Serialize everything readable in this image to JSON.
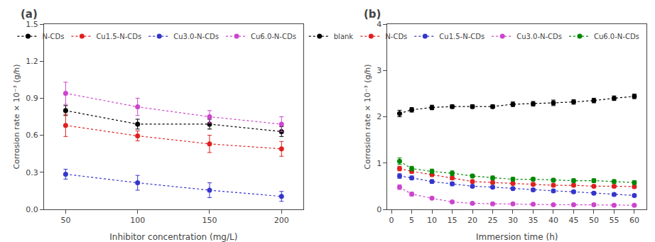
{
  "chart_data": [
    {
      "type": "line",
      "title": "(a)",
      "x": [
        50,
        100,
        150,
        200
      ],
      "series": [
        {
          "name": "N-CDs",
          "color": "#000000",
          "values": [
            0.8,
            0.69,
            0.69,
            0.63
          ],
          "yerr": [
            0.04,
            0.04,
            0.04,
            0.04
          ]
        },
        {
          "name": "Cu1.5-N-CDs",
          "color": "#e02020",
          "values": [
            0.68,
            0.595,
            0.53,
            0.49
          ],
          "yerr": [
            0.09,
            0.04,
            0.07,
            0.06
          ]
        },
        {
          "name": "Cu3.0-N-CDs",
          "color": "#3535cc",
          "values": [
            0.285,
            0.215,
            0.155,
            0.105
          ],
          "yerr": [
            0.04,
            0.06,
            0.06,
            0.04
          ]
        },
        {
          "name": "Cu6.0-N-CDs",
          "color": "#cc44cc",
          "values": [
            0.94,
            0.83,
            0.75,
            0.69
          ],
          "yerr": [
            0.09,
            0.07,
            0.05,
            0.06
          ]
        }
      ],
      "x_label": "Inhibitor concentration (mg/L)",
      "y_label": "Corrosion rate × 10⁻³ (g/h)",
      "xlim": [
        35,
        215
      ],
      "xticks": [
        50,
        100,
        150,
        200
      ],
      "ylim": [
        0.0,
        1.5
      ],
      "yticks": [
        {
          "value": 0.0,
          "label": "0.0"
        },
        0.3,
        0.6,
        0.9,
        1.2,
        1.5
      ],
      "marker": "circle",
      "line_style": "dotted",
      "grid": false,
      "legend": "upper right"
    },
    {
      "type": "line",
      "title": "(b)",
      "x": [
        2,
        5,
        10,
        15,
        20,
        25,
        30,
        35,
        40,
        45,
        50,
        55,
        60
      ],
      "series": [
        {
          "name": "blank",
          "color": "#000000",
          "values": [
            2.07,
            2.15,
            2.2,
            2.22,
            2.22,
            2.22,
            2.27,
            2.28,
            2.3,
            2.32,
            2.35,
            2.4,
            2.44
          ],
          "yerr": [
            0.07,
            0.05,
            0.05,
            0.04,
            0.04,
            0.04,
            0.05,
            0.05,
            0.06,
            0.05,
            0.05,
            0.05,
            0.05
          ]
        },
        {
          "name": "N-CDs",
          "color": "#e02020",
          "values": [
            0.88,
            0.82,
            0.75,
            0.68,
            0.6,
            0.58,
            0.56,
            0.54,
            0.52,
            0.52,
            0.5,
            0.5,
            0.49
          ],
          "yerr": [
            0.05,
            0.04,
            0.04,
            0.04,
            0.03,
            0.03,
            0.03,
            0.03,
            0.03,
            0.03,
            0.03,
            0.03,
            0.03
          ]
        },
        {
          "name": "Cu1.5-N-CDs",
          "color": "#3535cc",
          "values": [
            0.72,
            0.68,
            0.6,
            0.55,
            0.5,
            0.48,
            0.45,
            0.42,
            0.4,
            0.38,
            0.35,
            0.32,
            0.3
          ],
          "yerr": [
            0.05,
            0.04,
            0.04,
            0.04,
            0.03,
            0.03,
            0.03,
            0.03,
            0.03,
            0.03,
            0.03,
            0.03,
            0.03
          ]
        },
        {
          "name": "Cu3.0-N-CDs",
          "color": "#cc44cc",
          "values": [
            0.48,
            0.33,
            0.24,
            0.16,
            0.13,
            0.12,
            0.12,
            0.11,
            0.1,
            0.1,
            0.1,
            0.09,
            0.09
          ],
          "yerr": [
            0.05,
            0.04,
            0.03,
            0.02,
            0.02,
            0.02,
            0.02,
            0.02,
            0.02,
            0.02,
            0.02,
            0.02,
            0.02
          ]
        },
        {
          "name": "Cu6.0-N-CDs",
          "color": "#008800",
          "values": [
            1.04,
            0.88,
            0.82,
            0.78,
            0.72,
            0.68,
            0.65,
            0.65,
            0.63,
            0.62,
            0.62,
            0.6,
            0.58
          ],
          "yerr": [
            0.07,
            0.05,
            0.05,
            0.05,
            0.04,
            0.04,
            0.04,
            0.04,
            0.04,
            0.04,
            0.04,
            0.04,
            0.04
          ]
        }
      ],
      "x_label": "Immersion time (h)",
      "y_label": "Corrosion rate × 10⁻³ (g/h)",
      "xlim": [
        -1,
        63
      ],
      "xticks": [
        0,
        5,
        10,
        15,
        20,
        25,
        30,
        35,
        40,
        45,
        50,
        55,
        60
      ],
      "ylim": [
        0.0,
        4.0
      ],
      "yticks": [
        0,
        1,
        2,
        3,
        4
      ],
      "marker": "circle",
      "line_style": "dotted",
      "grid": false,
      "legend": "upper right"
    }
  ]
}
